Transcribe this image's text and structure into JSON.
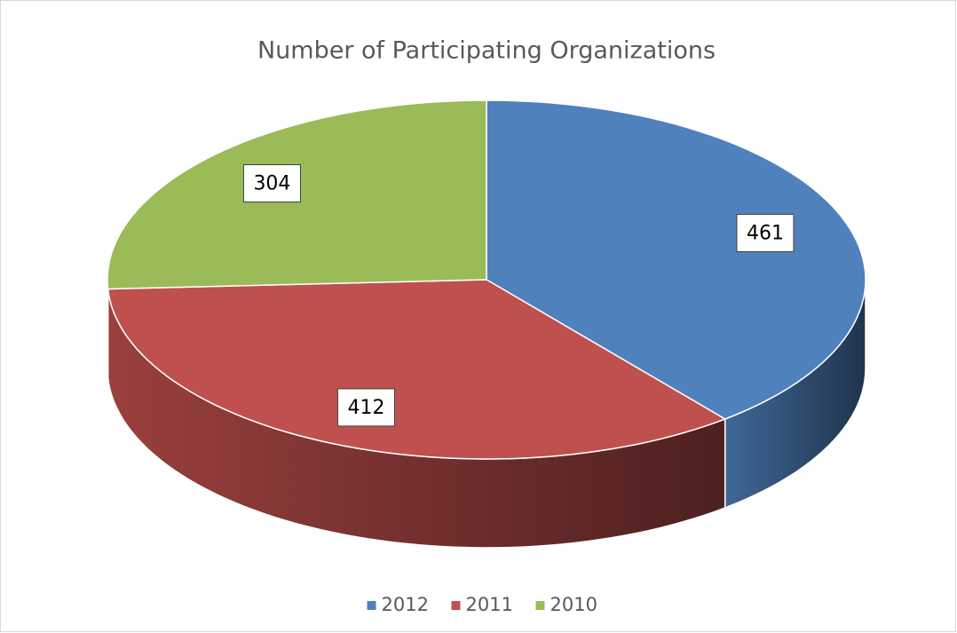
{
  "chart_data": {
    "type": "pie",
    "title": "Number of Participating Organizations",
    "categories": [
      "2012",
      "2011",
      "2010"
    ],
    "values": [
      461,
      412,
      304
    ],
    "colors": [
      "#4f81bd",
      "#c0504d",
      "#9bbb59"
    ],
    "legend": "bottom"
  }
}
